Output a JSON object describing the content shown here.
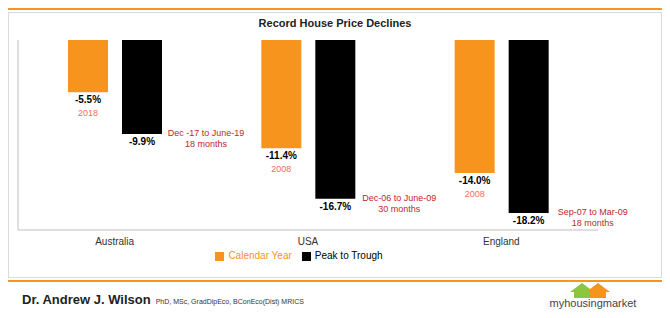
{
  "chart_data": {
    "type": "bar",
    "title": "Record House Price Declines",
    "categories": [
      "Australia",
      "USA",
      "England"
    ],
    "series": [
      {
        "name": "Calendar Year",
        "color": "#F7941D",
        "values": [
          -5.5,
          -11.4,
          -14.0
        ],
        "value_labels": [
          "-5.5%",
          "-11.4%",
          "-14.0%"
        ],
        "annotations": [
          "2018",
          "2008",
          "2008"
        ]
      },
      {
        "name": "Peak to Trough",
        "color": "#000000",
        "values": [
          -9.9,
          -16.7,
          -18.2
        ],
        "value_labels": [
          "-9.9%",
          "-16.7%",
          "-18.2%"
        ],
        "annotations": [
          [
            "Dec -17 to June-19",
            "18 months"
          ],
          [
            "Dec-06 to June-09",
            "30 months"
          ],
          [
            "Sep-07 to Mar-09",
            "18 months"
          ]
        ]
      }
    ],
    "ylim": [
      -20,
      0
    ],
    "data_labels": true,
    "tick_labels": "x",
    "grid": false,
    "legend": "bottom"
  },
  "footer": {
    "author": "Dr. Andrew J. Wilson",
    "credentials": "PhD, MSc, GradDipEco, BConEco(Dist) MRICS",
    "logo": "myhousingmarket"
  }
}
